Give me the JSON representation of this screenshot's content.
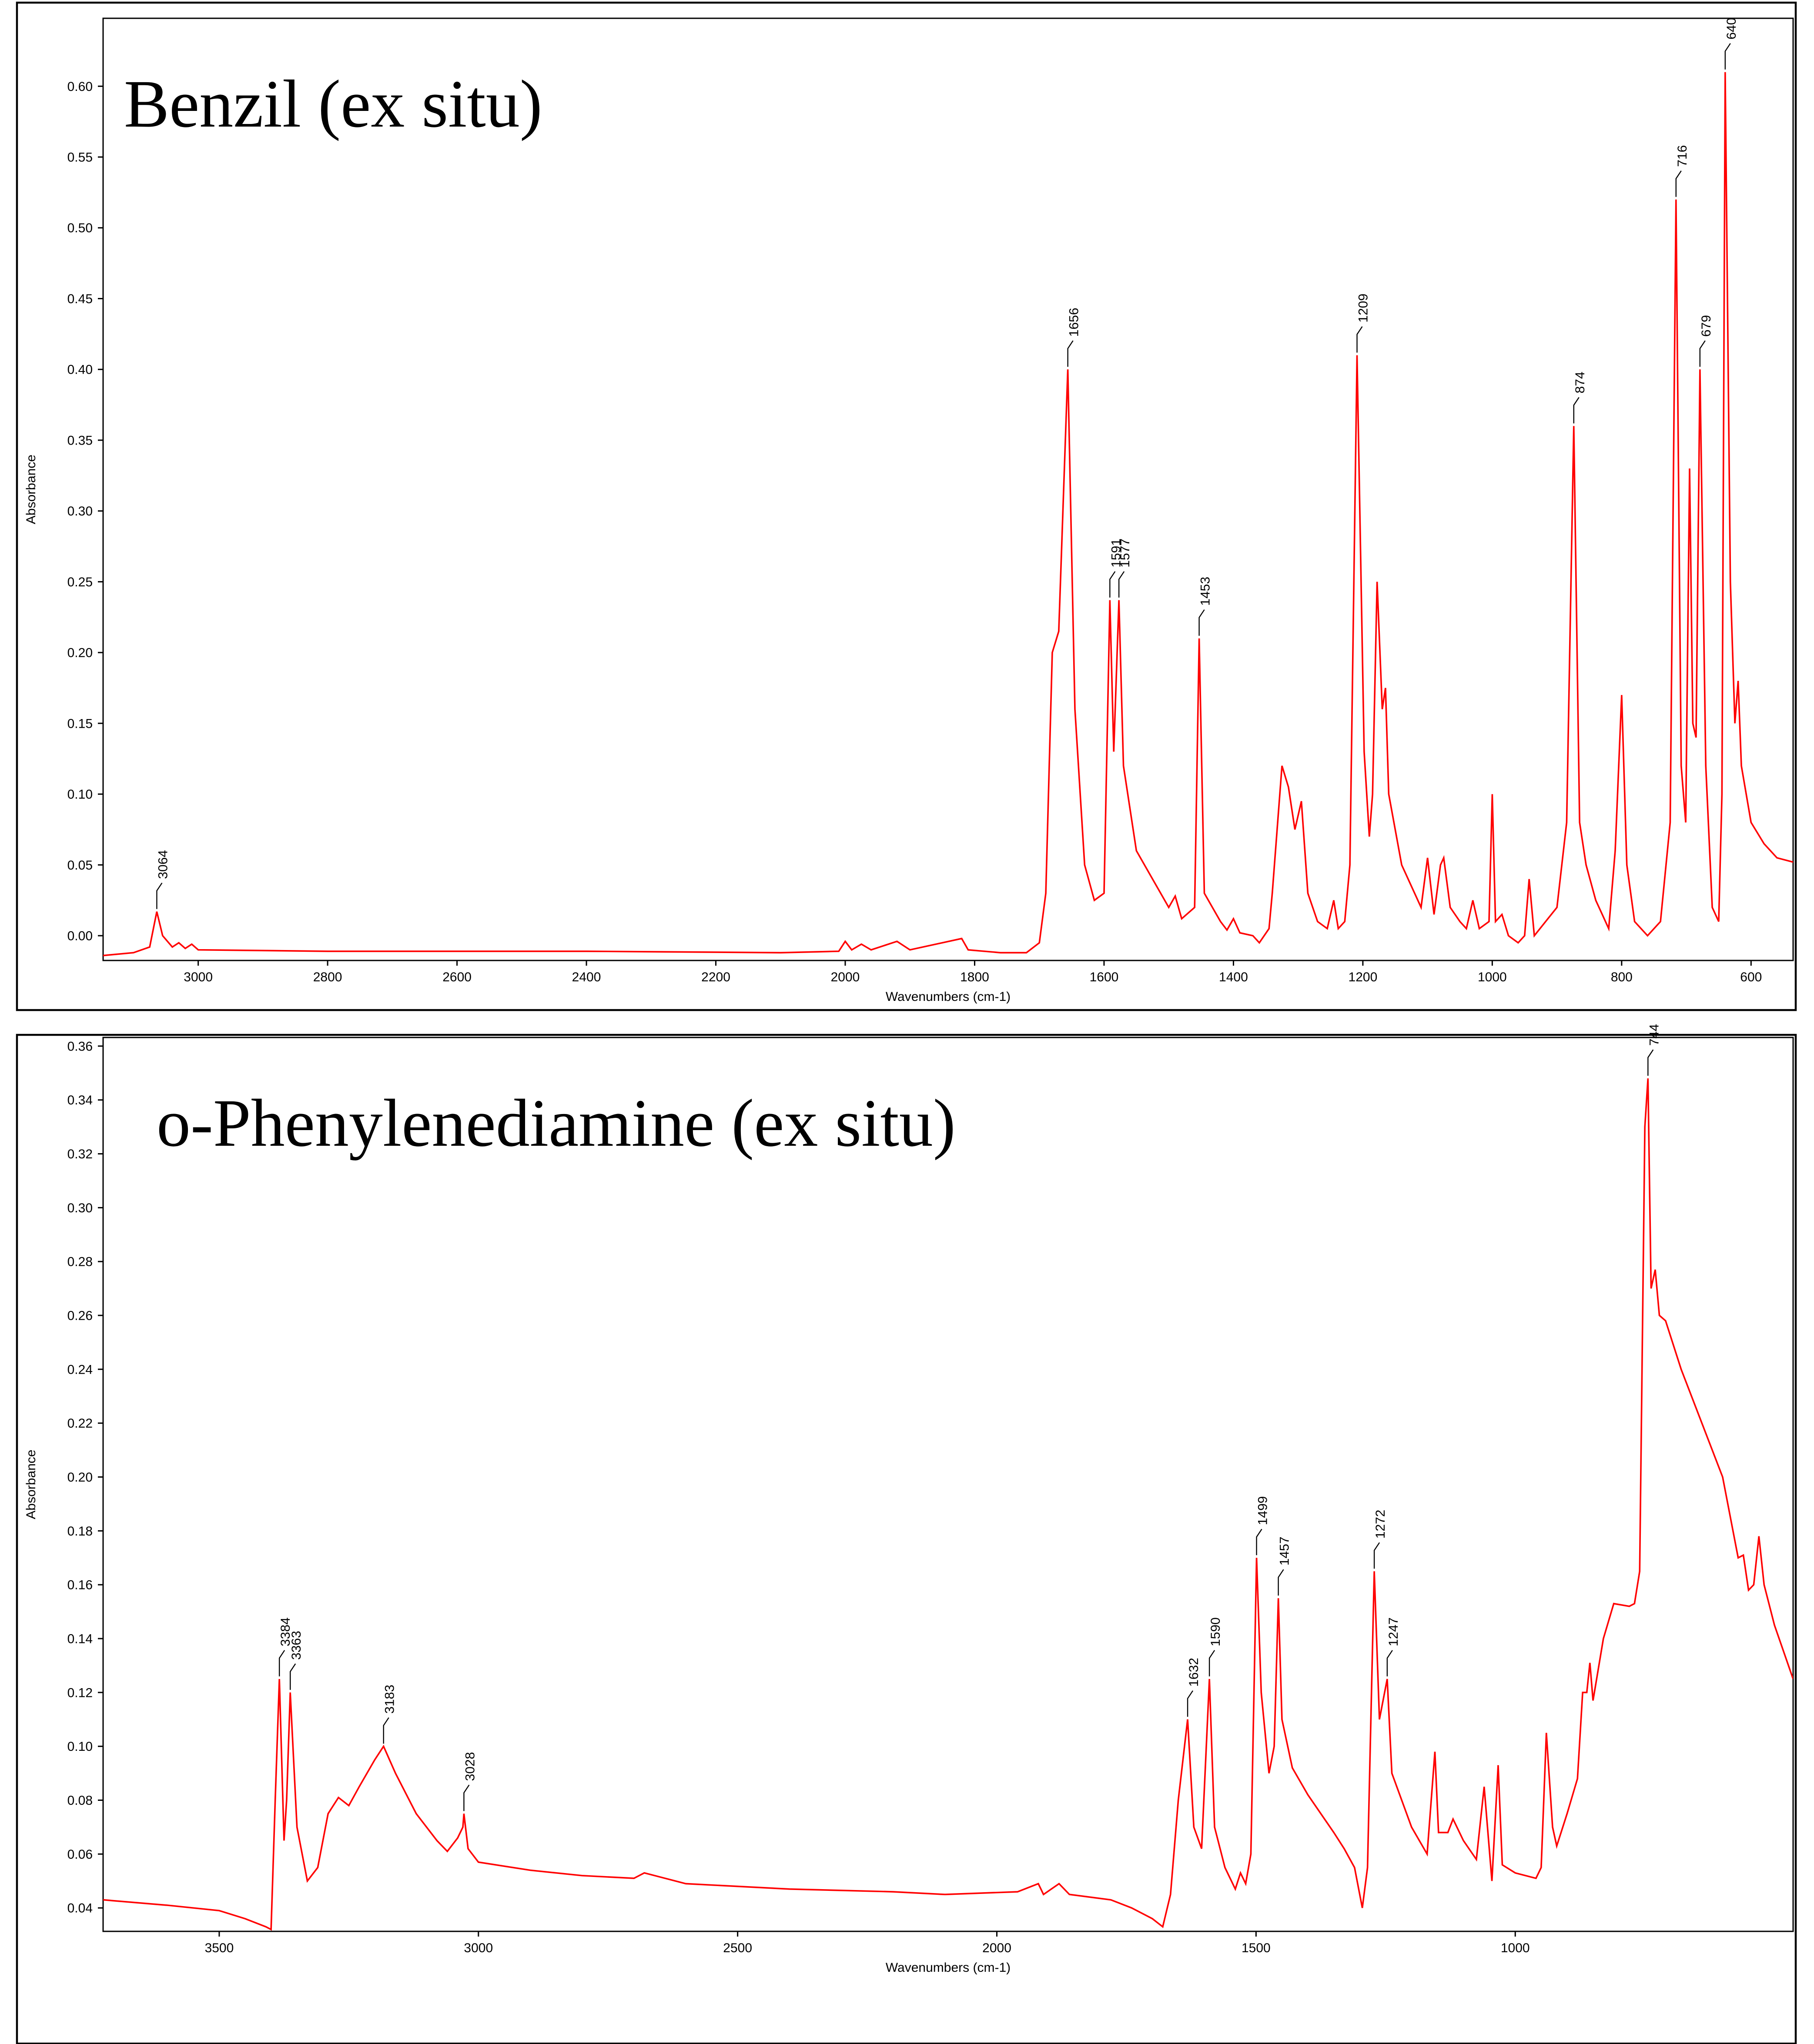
{
  "chart_data": [
    {
      "type": "line",
      "title": "Benzil (ex situ)",
      "x_label": "Wavenumbers (cm-1)",
      "y_label": "Absorbance",
      "xlim": [
        3147,
        535
      ],
      "ylim": [
        -0.0175,
        0.648
      ],
      "xticks": [
        3000,
        2800,
        2600,
        2400,
        2200,
        2000,
        1800,
        1600,
        1400,
        1200,
        1000,
        800,
        600
      ],
      "yticks": [
        {
          "value": 0,
          "label": "0.00"
        },
        {
          "value": 0.05,
          "label": "0.05"
        },
        {
          "value": 0.1,
          "label": "0.10"
        },
        {
          "value": 0.15,
          "label": "0.15"
        },
        {
          "value": 0.2,
          "label": "0.20"
        },
        {
          "value": 0.25,
          "label": "0.25"
        },
        {
          "value": 0.3,
          "label": "0.30"
        },
        {
          "value": 0.35,
          "label": "0.35"
        },
        {
          "value": 0.4,
          "label": "0.40"
        },
        {
          "value": 0.45,
          "label": "0.45"
        },
        {
          "value": 0.5,
          "label": "0.50"
        },
        {
          "value": 0.55,
          "label": "0.55"
        },
        {
          "value": 0.6,
          "label": "0.60"
        }
      ],
      "x": [
        3147,
        3100,
        3075,
        3064,
        3055,
        3040,
        3030,
        3020,
        3010,
        3000,
        2800,
        2400,
        2100,
        2010,
        2000,
        1990,
        1975,
        1960,
        1920,
        1900,
        1820,
        1810,
        1760,
        1720,
        1700,
        1690,
        1680,
        1670,
        1656,
        1645,
        1630,
        1615,
        1600,
        1591,
        1585,
        1577,
        1570,
        1550,
        1500,
        1490,
        1480,
        1460,
        1453,
        1445,
        1420,
        1410,
        1400,
        1390,
        1370,
        1360,
        1345,
        1340,
        1325,
        1315,
        1305,
        1295,
        1285,
        1270,
        1255,
        1245,
        1238,
        1228,
        1220,
        1209,
        1198,
        1190,
        1185,
        1178,
        1170,
        1165,
        1160,
        1140,
        1110,
        1100,
        1090,
        1080,
        1075,
        1065,
        1050,
        1040,
        1030,
        1020,
        1005,
        1000,
        995,
        985,
        975,
        960,
        950,
        943,
        935,
        900,
        885,
        874,
        865,
        855,
        840,
        820,
        810,
        800,
        792,
        780,
        760,
        740,
        725,
        716,
        708,
        701,
        695,
        690,
        685,
        679,
        670,
        660,
        650,
        645,
        640,
        632,
        625,
        620,
        615,
        600,
        580,
        560,
        535
      ],
      "series": [
        {
          "name": "Benzil",
          "color": "#ff0000",
          "values": [
            -0.014,
            -0.012,
            -0.008,
            0.017,
            0.0,
            -0.008,
            -0.005,
            -0.009,
            -0.006,
            -0.01,
            -0.011,
            -0.011,
            -0.012,
            -0.011,
            -0.004,
            -0.01,
            -0.006,
            -0.01,
            -0.004,
            -0.01,
            -0.002,
            -0.01,
            -0.012,
            -0.012,
            -0.005,
            0.03,
            0.2,
            0.215,
            0.4,
            0.16,
            0.05,
            0.025,
            0.03,
            0.237,
            0.13,
            0.237,
            0.12,
            0.06,
            0.02,
            0.028,
            0.012,
            0.02,
            0.21,
            0.03,
            0.01,
            0.004,
            0.012,
            0.002,
            0.0,
            -0.005,
            0.005,
            0.03,
            0.12,
            0.105,
            0.075,
            0.095,
            0.03,
            0.01,
            0.005,
            0.025,
            0.005,
            0.01,
            0.05,
            0.41,
            0.13,
            0.07,
            0.1,
            0.25,
            0.16,
            0.175,
            0.1,
            0.05,
            0.02,
            0.055,
            0.015,
            0.05,
            0.055,
            0.02,
            0.01,
            0.005,
            0.025,
            0.005,
            0.01,
            0.1,
            0.01,
            0.015,
            0.0,
            -0.005,
            0.0,
            0.04,
            0.0,
            0.02,
            0.08,
            0.36,
            0.08,
            0.05,
            0.025,
            0.005,
            0.06,
            0.17,
            0.05,
            0.01,
            0.0,
            0.01,
            0.08,
            0.52,
            0.12,
            0.08,
            0.33,
            0.15,
            0.14,
            0.4,
            0.12,
            0.02,
            0.01,
            0.1,
            0.61,
            0.25,
            0.15,
            0.18,
            0.12,
            0.08,
            0.065,
            0.055,
            0.052
          ]
        }
      ],
      "peaks": [
        3064,
        1656,
        1591,
        1577,
        1453,
        1209,
        874,
        716,
        679,
        640
      ]
    },
    {
      "type": "line",
      "title": "o-Phenylenediamine (ex situ)",
      "x_label": "Wavenumbers (cm-1)",
      "y_label": "Absorbance",
      "xlim": [
        3724,
        464
      ],
      "ylim": [
        0.0313,
        0.3632
      ],
      "xticks": [
        3500,
        3000,
        2500,
        2000,
        1500,
        1000
      ],
      "yticks": [
        {
          "value": 0.04,
          "label": "0.04"
        },
        {
          "value": 0.06,
          "label": "0.06"
        },
        {
          "value": 0.08,
          "label": "0.08"
        },
        {
          "value": 0.1,
          "label": "0.10"
        },
        {
          "value": 0.12,
          "label": "0.12"
        },
        {
          "value": 0.14,
          "label": "0.14"
        },
        {
          "value": 0.16,
          "label": "0.16"
        },
        {
          "value": 0.18,
          "label": "0.18"
        },
        {
          "value": 0.2,
          "label": "0.20"
        },
        {
          "value": 0.22,
          "label": "0.22"
        },
        {
          "value": 0.24,
          "label": "0.24"
        },
        {
          "value": 0.26,
          "label": "0.26"
        },
        {
          "value": 0.28,
          "label": "0.28"
        },
        {
          "value": 0.3,
          "label": "0.30"
        },
        {
          "value": 0.32,
          "label": "0.32"
        },
        {
          "value": 0.34,
          "label": "0.34"
        },
        {
          "value": 0.36,
          "label": "0.36"
        }
      ],
      "x": [
        3724,
        3600,
        3500,
        3450,
        3410,
        3400,
        3392,
        3384,
        3375,
        3370,
        3363,
        3350,
        3330,
        3310,
        3290,
        3270,
        3250,
        3230,
        3200,
        3183,
        3160,
        3120,
        3080,
        3060,
        3040,
        3030,
        3028,
        3020,
        3000,
        2900,
        2800,
        2700,
        2680,
        2600,
        2400,
        2200,
        2100,
        1960,
        1920,
        1910,
        1880,
        1860,
        1780,
        1740,
        1700,
        1680,
        1665,
        1650,
        1632,
        1620,
        1605,
        1590,
        1580,
        1560,
        1540,
        1530,
        1520,
        1510,
        1499,
        1490,
        1475,
        1465,
        1457,
        1450,
        1430,
        1400,
        1350,
        1330,
        1310,
        1295,
        1285,
        1272,
        1262,
        1247,
        1238,
        1200,
        1170,
        1155,
        1148,
        1130,
        1120,
        1100,
        1075,
        1060,
        1045,
        1033,
        1025,
        1000,
        960,
        950,
        940,
        928,
        920,
        900,
        880,
        870,
        862,
        856,
        850,
        830,
        810,
        780,
        770,
        760,
        750,
        744,
        738,
        730,
        722,
        710,
        680,
        640,
        600,
        570,
        560,
        550,
        540,
        530,
        520,
        500,
        464
      ],
      "series": [
        {
          "name": "o-Phenylenediamine",
          "color": "#ff0000",
          "values": [
            0.043,
            0.041,
            0.039,
            0.036,
            0.033,
            0.032,
            0.08,
            0.125,
            0.065,
            0.08,
            0.12,
            0.07,
            0.05,
            0.055,
            0.075,
            0.081,
            0.078,
            0.085,
            0.095,
            0.1,
            0.09,
            0.075,
            0.065,
            0.061,
            0.066,
            0.07,
            0.075,
            0.062,
            0.057,
            0.054,
            0.052,
            0.051,
            0.053,
            0.049,
            0.047,
            0.046,
            0.045,
            0.046,
            0.049,
            0.045,
            0.049,
            0.045,
            0.043,
            0.04,
            0.036,
            0.033,
            0.045,
            0.08,
            0.11,
            0.07,
            0.062,
            0.125,
            0.07,
            0.055,
            0.047,
            0.053,
            0.049,
            0.06,
            0.17,
            0.12,
            0.09,
            0.1,
            0.155,
            0.11,
            0.092,
            0.082,
            0.068,
            0.062,
            0.055,
            0.04,
            0.055,
            0.165,
            0.11,
            0.125,
            0.09,
            0.07,
            0.06,
            0.098,
            0.068,
            0.068,
            0.073,
            0.065,
            0.058,
            0.085,
            0.05,
            0.093,
            0.056,
            0.053,
            0.051,
            0.055,
            0.105,
            0.07,
            0.063,
            0.075,
            0.088,
            0.12,
            0.12,
            0.131,
            0.117,
            0.14,
            0.153,
            0.152,
            0.153,
            0.165,
            0.33,
            0.348,
            0.27,
            0.277,
            0.26,
            0.258,
            0.24,
            0.22,
            0.2,
            0.17,
            0.171,
            0.158,
            0.16,
            0.178,
            0.16,
            0.145,
            0.125
          ]
        }
      ],
      "peaks": [
        3384,
        3363,
        3183,
        3028,
        1632,
        1590,
        1499,
        1457,
        1272,
        1247,
        744
      ]
    }
  ]
}
